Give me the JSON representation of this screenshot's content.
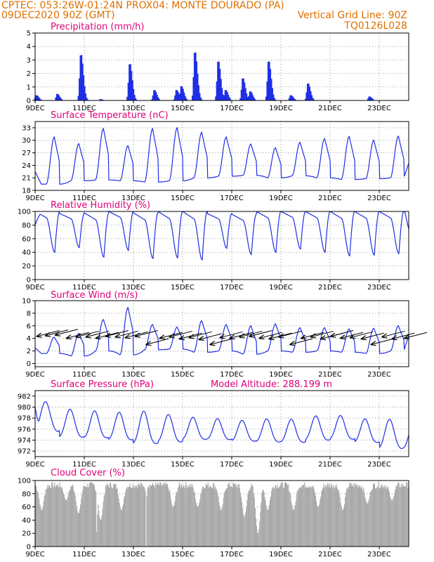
{
  "header": {
    "line1": "CPTEC:   053:26W-01:24N   PROX04: MONTE DOURADO (PA)",
    "line2_left": "09DEC2020 90Z (GMT)",
    "line2_right": "Vertical Grid Line: 90Z",
    "line3_right": "TQ0126L028"
  },
  "colors": {
    "header": "#e07000",
    "title": "#e0007a",
    "line": "#1f2fe6",
    "bar": "#1f2fe6",
    "cloud": "#a8a8a8",
    "wind_arrow": "#000000"
  },
  "x_tick_labels": [
    "9DEC",
    "11DEC",
    "13DEC",
    "15DEC",
    "17DEC",
    "19DEC",
    "21DEC",
    "23DEC"
  ],
  "chart_data": [
    {
      "type": "bar",
      "title": "Precipitation (mm/h)",
      "xlabel": "",
      "ylabel": "",
      "x_range_days": [
        0,
        15.2
      ],
      "ylim": [
        0,
        5
      ],
      "yticks": [
        0,
        1,
        2,
        3,
        4,
        5
      ],
      "grid": true,
      "peaks": [
        {
          "day": 0.05,
          "v": 0.4
        },
        {
          "day": 0.9,
          "v": 0.5
        },
        {
          "day": 1.86,
          "v": 3.5
        },
        {
          "day": 2.65,
          "v": 0.1
        },
        {
          "day": 3.85,
          "v": 2.8
        },
        {
          "day": 4.85,
          "v": 0.8
        },
        {
          "day": 5.75,
          "v": 0.8
        },
        {
          "day": 5.95,
          "v": 1.1
        },
        {
          "day": 6.5,
          "v": 3.7
        },
        {
          "day": 7.45,
          "v": 3.0
        },
        {
          "day": 7.75,
          "v": 0.8
        },
        {
          "day": 8.45,
          "v": 1.7
        },
        {
          "day": 8.75,
          "v": 0.7
        },
        {
          "day": 9.5,
          "v": 3.0
        },
        {
          "day": 10.4,
          "v": 0.4
        },
        {
          "day": 11.1,
          "v": 1.3
        },
        {
          "day": 13.6,
          "v": 0.3
        }
      ]
    },
    {
      "type": "line",
      "title": "Surface Temperature (nC)",
      "xlabel": "",
      "ylabel": "",
      "x_range_days": [
        0,
        15.2
      ],
      "ylim": [
        18,
        34.5
      ],
      "yticks": [
        18,
        21,
        24,
        27,
        30,
        33
      ],
      "grid": true,
      "daily_max": [
        30.8,
        29.2,
        32.8,
        28.7,
        32.8,
        33.0,
        31.9,
        30.8,
        29.1,
        28.2,
        29.5,
        30.4,
        30.9,
        30.0,
        31.0
      ],
      "daily_min": [
        19.5,
        20.3,
        20.5,
        20.3,
        20.0,
        20.3,
        21.0,
        21.4,
        21.6,
        21.0,
        21.5,
        21.0,
        20.6,
        20.8,
        21.0
      ],
      "start_value": 22.5,
      "end_value": 24.5
    },
    {
      "type": "line",
      "title": "Relative Humidity (%)",
      "xlabel": "",
      "ylabel": "",
      "x_range_days": [
        0,
        15.2
      ],
      "ylim": [
        0,
        100
      ],
      "yticks": [
        0,
        20,
        40,
        60,
        80,
        100
      ],
      "grid": true,
      "daily_max": [
        100,
        97,
        98,
        100,
        98,
        100,
        100,
        97,
        96,
        100,
        100,
        100,
        100,
        100,
        100
      ],
      "daily_min": [
        40,
        47,
        33,
        43,
        31,
        32,
        29,
        46,
        37,
        40,
        45,
        40,
        35,
        36,
        38
      ],
      "start_value": 80,
      "end_value": 74
    },
    {
      "type": "line",
      "title": "Surface Wind (m/s)",
      "xlabel": "",
      "ylabel": "",
      "x_range_days": [
        0,
        15.2
      ],
      "ylim": [
        -0.5,
        10
      ],
      "yticks": [
        0,
        2,
        4,
        6,
        8,
        10
      ],
      "grid": true,
      "daily_max": [
        4.2,
        4.8,
        7.0,
        8.9,
        6.2,
        5.8,
        6.8,
        6.2,
        6.0,
        6.3,
        5.7,
        5.7,
        5.5,
        5.6,
        6.0
      ],
      "daily_min": [
        1.6,
        1.2,
        2.0,
        1.4,
        2.2,
        2.3,
        1.8,
        2.0,
        1.5,
        2.0,
        1.8,
        2.0,
        1.8,
        1.6,
        2.0
      ],
      "wind_arrows": [
        {
          "day": 0.05,
          "speed": 4.3
        },
        {
          "day": 0.4,
          "speed": 4.4
        },
        {
          "day": 0.8,
          "speed": 4.5
        },
        {
          "day": 1.25,
          "speed": 4.0
        },
        {
          "day": 1.65,
          "speed": 4.2
        },
        {
          "day": 2.05,
          "speed": 4.2
        },
        {
          "day": 2.45,
          "speed": 4.0
        },
        {
          "day": 2.85,
          "speed": 4.3
        },
        {
          "day": 3.25,
          "speed": 4.2
        },
        {
          "day": 3.65,
          "speed": 4.1
        },
        {
          "day": 4.05,
          "speed": 4.3
        },
        {
          "day": 4.5,
          "speed": 3.0
        },
        {
          "day": 5.05,
          "speed": 4.0
        },
        {
          "day": 5.45,
          "speed": 4.2
        },
        {
          "day": 5.85,
          "speed": 3.9
        },
        {
          "day": 6.25,
          "speed": 4.1
        },
        {
          "day": 6.65,
          "speed": 3.8
        },
        {
          "day": 7.1,
          "speed": 3.0
        },
        {
          "day": 7.5,
          "speed": 4.1
        },
        {
          "day": 7.9,
          "speed": 4.0
        },
        {
          "day": 8.3,
          "speed": 4.2
        },
        {
          "day": 8.7,
          "speed": 4.3
        },
        {
          "day": 9.1,
          "speed": 4.0
        },
        {
          "day": 9.5,
          "speed": 3.9
        },
        {
          "day": 9.9,
          "speed": 4.2
        },
        {
          "day": 10.35,
          "speed": 3.0
        },
        {
          "day": 10.8,
          "speed": 4.0
        },
        {
          "day": 11.2,
          "speed": 4.2
        },
        {
          "day": 11.6,
          "speed": 3.9
        },
        {
          "day": 12.0,
          "speed": 4.3
        },
        {
          "day": 12.4,
          "speed": 4.0
        },
        {
          "day": 12.8,
          "speed": 4.1
        },
        {
          "day": 13.25,
          "speed": 3.9
        },
        {
          "day": 13.65,
          "speed": 3.0
        },
        {
          "day": 14.1,
          "speed": 4.2
        },
        {
          "day": 14.5,
          "speed": 3.9
        },
        {
          "day": 15.0,
          "speed": 4.0
        }
      ]
    },
    {
      "type": "line",
      "title": "Surface Pressure (hPa)",
      "annotation": "Model Altitude: 288.199 m",
      "xlabel": "",
      "ylabel": "",
      "x_range_days": [
        0,
        15.2
      ],
      "ylim": [
        971,
        983
      ],
      "yticks": [
        972,
        974,
        976,
        978,
        980,
        982
      ],
      "grid": true,
      "morning_max": [
        981.3,
        979.2,
        978.8,
        978.5,
        978.3,
        978.0,
        977.7,
        977.6,
        977.3,
        977.4,
        977.2,
        977.9,
        978.1,
        977.5,
        977.3
      ],
      "evening_max": [
        978.0,
        977.5,
        977.4,
        977.1,
        977.3,
        976.8,
        976.6,
        976.3,
        976.0,
        976.2,
        976.3,
        976.7,
        976.7,
        976.1,
        975.6
      ],
      "afternoon_min": [
        975.9,
        974.1,
        973.9,
        973.5,
        972.4,
        973.0,
        973.7,
        973.8,
        973.5,
        973.2,
        973.0,
        973.5,
        973.8,
        973.2,
        972.0
      ],
      "night_min": [
        976.9,
        976.1,
        975.7,
        975.5,
        975.4,
        975.3,
        975.2,
        975.0,
        974.8,
        974.9,
        974.9,
        975.4,
        975.4,
        974.8,
        974.2
      ],
      "start_value": 980.0,
      "end_value": 975.3
    },
    {
      "type": "area",
      "title": "Cloud Cover (%)",
      "xlabel": "",
      "ylabel": "",
      "x_range_days": [
        0,
        15.2
      ],
      "ylim": [
        0,
        100
      ],
      "yticks": [
        0,
        20,
        40,
        60,
        80,
        100
      ],
      "grid": true,
      "base_level": 93,
      "dips": [
        {
          "day": 0.25,
          "v": 55
        },
        {
          "day": 1.25,
          "v": 70
        },
        {
          "day": 1.75,
          "v": 50
        },
        {
          "day": 2.5,
          "v": 0
        },
        {
          "day": 2.65,
          "v": 40
        },
        {
          "day": 3.5,
          "v": 55
        },
        {
          "day": 4.5,
          "v": 0
        },
        {
          "day": 5.6,
          "v": 60
        },
        {
          "day": 6.6,
          "v": 60
        },
        {
          "day": 7.55,
          "v": 55
        },
        {
          "day": 8.5,
          "v": 45
        },
        {
          "day": 9.05,
          "v": 20
        },
        {
          "day": 9.45,
          "v": 55
        },
        {
          "day": 10.5,
          "v": 55
        },
        {
          "day": 11.5,
          "v": 60
        },
        {
          "day": 12.5,
          "v": 55
        },
        {
          "day": 13.5,
          "v": 65
        },
        {
          "day": 14.5,
          "v": 70
        }
      ]
    }
  ]
}
